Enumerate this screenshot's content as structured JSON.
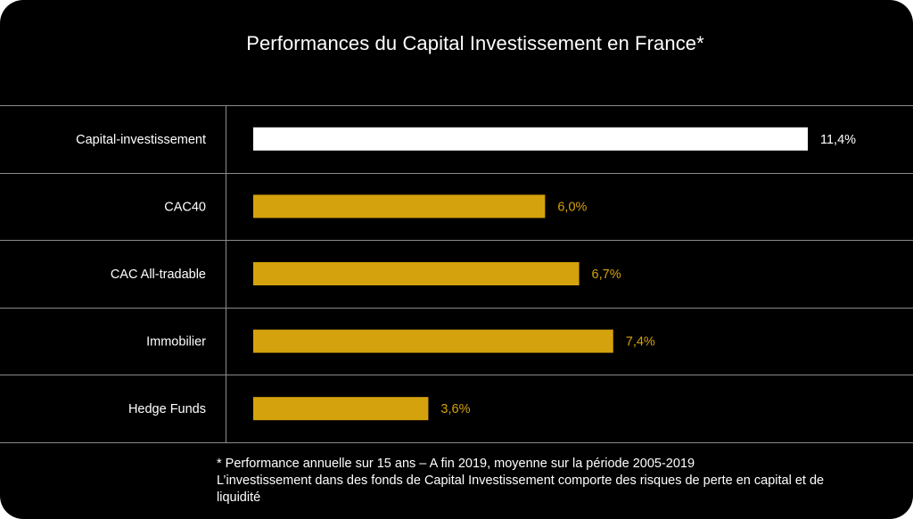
{
  "chart_data": {
    "type": "bar",
    "orientation": "horizontal",
    "title": "Performances du Capital Investissement en France*",
    "categories": [
      "Capital-investissement",
      "CAC40",
      "CAC All-tradable",
      "Immobilier",
      "Hedge Funds"
    ],
    "values": [
      11.4,
      6.0,
      6.7,
      7.4,
      3.6
    ],
    "value_labels": [
      "11,4%",
      "6,0%",
      "6,7%",
      "7,4%",
      "3,6%"
    ],
    "bar_colors": [
      "#ffffff",
      "#d4a20c",
      "#d4a20c",
      "#d4a20c",
      "#d4a20c"
    ],
    "label_colors": [
      "#ffffff",
      "#d4a20c",
      "#d4a20c",
      "#d4a20c",
      "#d4a20c"
    ],
    "xlim": [
      0,
      11.4
    ],
    "xlabel": "",
    "ylabel": "",
    "grid": "horizontal row separators",
    "legend": "none"
  },
  "footnote": {
    "line1": "* Performance annuelle sur 15 ans – A fin 2019, moyenne sur la période 2005-2019",
    "line2": "L’investissement dans des fonds de Capital Investissement comporte des risques de perte en capital et de",
    "line3": "liquidité"
  },
  "colors": {
    "background": "#000000",
    "accent": "#d4a20c",
    "text": "#ffffff",
    "lines": "#8a8a8a"
  }
}
